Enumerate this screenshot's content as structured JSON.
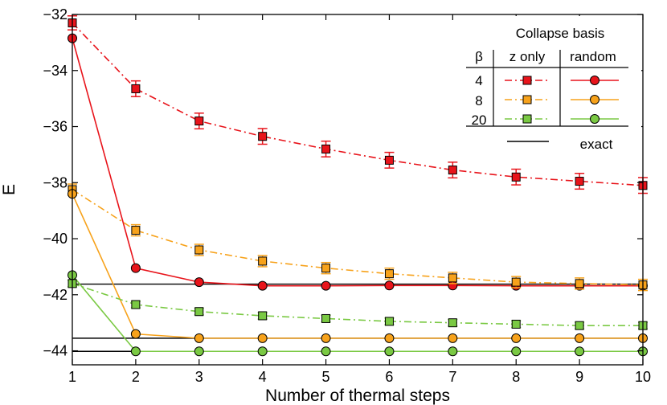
{
  "chart_data": {
    "type": "line",
    "xlabel": "Number of thermal steps",
    "ylabel": "E",
    "xlim": [
      1,
      10
    ],
    "ylim": [
      -44.5,
      -32
    ],
    "x": [
      1,
      2,
      3,
      4,
      5,
      6,
      7,
      8,
      9,
      10
    ],
    "xticks": [
      "1",
      "2",
      "3",
      "4",
      "5",
      "6",
      "7",
      "8",
      "9",
      "10"
    ],
    "yticks": [
      {
        "value": -32,
        "label": "−32"
      },
      {
        "value": -34,
        "label": "−34"
      },
      {
        "value": -36,
        "label": "−36"
      },
      {
        "value": -38,
        "label": "−38"
      },
      {
        "value": -40,
        "label": "−40"
      },
      {
        "value": -42,
        "label": "−42"
      },
      {
        "value": -44,
        "label": "−44"
      }
    ],
    "grid": false,
    "legend": {
      "position": "top-right",
      "title": "Collapse basis",
      "beta_header": "β",
      "col_z": "z only",
      "col_random": "random",
      "exact_label": "exact",
      "betas": [
        "4",
        "8",
        "20"
      ]
    },
    "series": [
      {
        "beta": "4",
        "basis": "z only",
        "style": "dash-dot",
        "marker": "square",
        "color": "#e8141b",
        "values": [
          -32.3,
          -34.65,
          -35.8,
          -36.35,
          -36.8,
          -37.2,
          -37.55,
          -37.8,
          -37.95,
          -38.1
        ],
        "errors": [
          0.25,
          0.28,
          0.28,
          0.28,
          0.28,
          0.28,
          0.28,
          0.28,
          0.28,
          0.28
        ]
      },
      {
        "beta": "4",
        "basis": "random",
        "style": "solid",
        "marker": "circle",
        "color": "#e8141b",
        "values": [
          -32.85,
          -41.05,
          -41.55,
          -41.68,
          -41.68,
          -41.67,
          -41.67,
          -41.68,
          -41.68,
          -41.68
        ]
      },
      {
        "beta": "8",
        "basis": "z only",
        "style": "dash-dot",
        "marker": "square",
        "color": "#f7a21b",
        "values": [
          -38.25,
          -39.7,
          -40.4,
          -40.8,
          -41.05,
          -41.25,
          -41.4,
          -41.55,
          -41.6,
          -41.65
        ],
        "errors": [
          0.2,
          0.2,
          0.2,
          0.2,
          0.2,
          0.2,
          0.2,
          0.2,
          0.2,
          0.2
        ]
      },
      {
        "beta": "8",
        "basis": "random",
        "style": "solid",
        "marker": "circle",
        "color": "#f7a21b",
        "values": [
          -38.4,
          -43.4,
          -43.55,
          -43.55,
          -43.55,
          -43.55,
          -43.55,
          -43.55,
          -43.55,
          -43.55
        ]
      },
      {
        "beta": "20",
        "basis": "z only",
        "style": "dash-dot",
        "marker": "square",
        "color": "#7ac943",
        "values": [
          -41.6,
          -42.35,
          -42.6,
          -42.75,
          -42.85,
          -42.95,
          -43.0,
          -43.05,
          -43.1,
          -43.1
        ],
        "errors": [
          0.12,
          0.12,
          0.12,
          0.12,
          0.12,
          0.12,
          0.12,
          0.12,
          0.12,
          0.12
        ]
      },
      {
        "beta": "20",
        "basis": "random",
        "style": "solid",
        "marker": "circle",
        "color": "#7ac943",
        "values": [
          -41.3,
          -44.02,
          -44.02,
          -44.02,
          -44.02,
          -44.02,
          -44.02,
          -44.02,
          -44.02,
          -44.02
        ]
      }
    ],
    "exact": [
      -41.62,
      -43.55,
      -44.02
    ]
  }
}
